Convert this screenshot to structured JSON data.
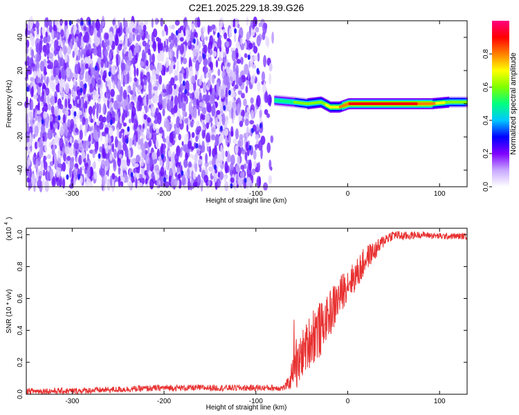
{
  "title": "C2E1.2025.229.18.39.G26",
  "chart_data": [
    {
      "type": "heatmap",
      "title": "C2E1.2025.229.18.39.G26",
      "xlabel": "Height of straight line (km)",
      "ylabel": "Frequency (Hz)",
      "xlim": [
        -350,
        130
      ],
      "ylim": [
        -50,
        50
      ],
      "x_ticks": [
        -300,
        -200,
        -100,
        0,
        100
      ],
      "y_ticks": [
        -40,
        -20,
        0,
        20,
        40
      ],
      "colorbar": {
        "label": "Normalized spectral amplitude",
        "range": [
          0,
          1
        ],
        "ticks": [
          0.0,
          0.2,
          0.4,
          0.6,
          0.8
        ],
        "colors": [
          "#ffffff",
          "#c8a8ff",
          "#8000ff",
          "#0000ff",
          "#00c8ff",
          "#00ff80",
          "#80ff00",
          "#ffff00",
          "#ff8000",
          "#ff0000",
          "#ff0080"
        ]
      },
      "noise_region_x": [
        -350,
        -80
      ],
      "signal_band": {
        "x": [
          -80,
          -60,
          -45,
          -30,
          -20,
          -10,
          0,
          30,
          60,
          90,
          110,
          130
        ],
        "freq_hz": [
          2,
          1,
          0,
          1,
          -2,
          -2,
          0,
          0,
          0,
          0,
          1,
          1
        ],
        "amplitude": [
          0.5,
          0.55,
          0.6,
          0.6,
          0.7,
          0.75,
          0.85,
          0.9,
          0.9,
          0.8,
          0.6,
          0.55
        ]
      }
    },
    {
      "type": "line",
      "xlabel": "Height of straight line (km)",
      "ylabel": "SNR (10 * v/v)",
      "y_scale_label": "(x10",
      "y_scale_exp": "4",
      "xlim": [
        -350,
        130
      ],
      "ylim": [
        0,
        1.04
      ],
      "x_ticks": [
        -300,
        -200,
        -100,
        0,
        100
      ],
      "y_ticks": [
        0.0,
        0.2,
        0.4,
        0.6,
        0.8,
        1.0
      ],
      "series": [
        {
          "color": "#e83030",
          "x": [
            -350,
            -300,
            -250,
            -200,
            -150,
            -100,
            -70,
            -62,
            -58,
            -55,
            -50,
            -45,
            -40,
            -35,
            -30,
            -25,
            -20,
            -15,
            -10,
            -5,
            0,
            5,
            10,
            15,
            20,
            25,
            30,
            35,
            40,
            50,
            60,
            80,
            100,
            130
          ],
          "values": [
            0.02,
            0.02,
            0.03,
            0.04,
            0.04,
            0.04,
            0.04,
            0.08,
            0.3,
            0.15,
            0.25,
            0.3,
            0.35,
            0.4,
            0.4,
            0.45,
            0.5,
            0.55,
            0.6,
            0.65,
            0.7,
            0.72,
            0.75,
            0.8,
            0.85,
            0.88,
            0.9,
            0.93,
            0.97,
            1.0,
            0.99,
            1.0,
            0.99,
            0.99
          ],
          "spread": [
            0.02,
            0.02,
            0.02,
            0.02,
            0.02,
            0.02,
            0.02,
            0.05,
            0.22,
            0.15,
            0.15,
            0.15,
            0.18,
            0.2,
            0.18,
            0.12,
            0.15,
            0.15,
            0.12,
            0.12,
            0.1,
            0.1,
            0.1,
            0.1,
            0.08,
            0.07,
            0.06,
            0.05,
            0.04,
            0.03,
            0.03,
            0.02,
            0.02,
            0.02
          ]
        }
      ]
    }
  ]
}
